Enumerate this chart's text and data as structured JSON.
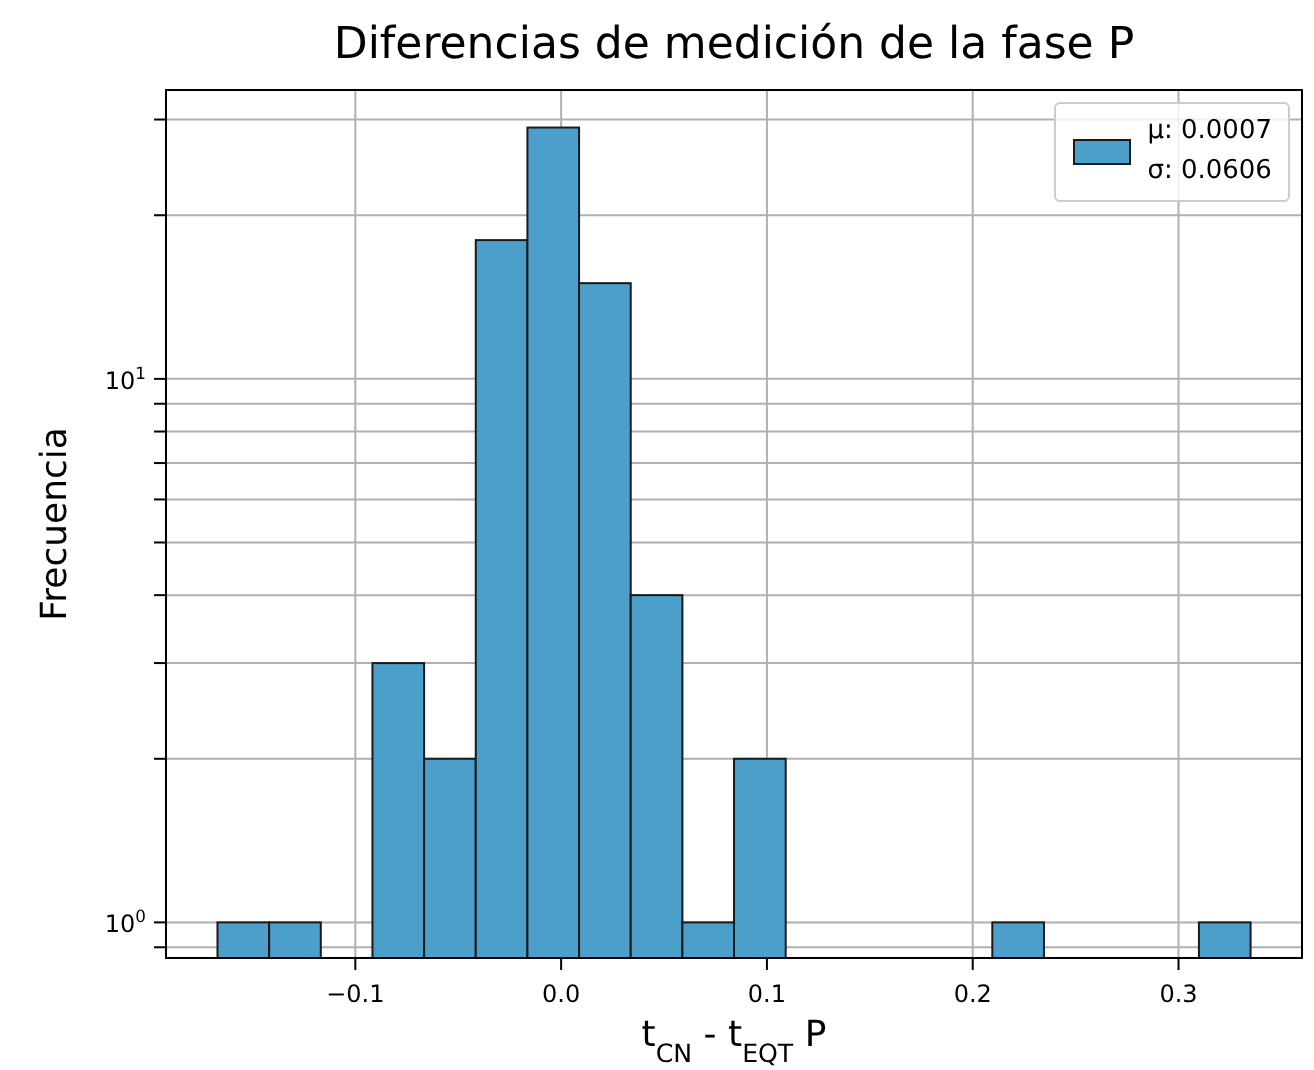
{
  "chart_data": {
    "type": "histogram",
    "title": "Diferencias de medición de la fase P",
    "xlabel": "t$_{CN}$ - t$_{EQT}$ P",
    "ylabel": "Frecuencia",
    "bins": [
      -0.1667,
      -0.1416,
      -0.1165,
      -0.0914,
      -0.0663,
      -0.0412,
      -0.0161,
      0.009,
      0.0341,
      0.0592,
      0.0843,
      0.1094,
      0.1345,
      0.1596,
      0.1847,
      0.2098,
      0.2349,
      0.26,
      0.2851,
      0.3102,
      0.3353
    ],
    "series": [
      {
        "name": "μ: 0.0007\nσ: 0.0606",
        "color": "#4c9fcb",
        "values": [
          1,
          1,
          null,
          3,
          2,
          18,
          29,
          15,
          4,
          1,
          2,
          null,
          null,
          null,
          null,
          1,
          null,
          null,
          null,
          1
        ]
      }
    ],
    "log": "y",
    "xlim": [
      -0.192,
      0.36
    ],
    "ylim": [
      0.86,
      34
    ],
    "xticks": [
      {
        "value": -0.1,
        "label": "−0.1"
      },
      {
        "value": 0,
        "label": "0.0"
      },
      {
        "value": 0.1,
        "label": "0.1"
      },
      {
        "value": 0.2,
        "label": "0.2"
      },
      {
        "value": 0.3,
        "label": "0.3"
      }
    ],
    "yticks": [
      {
        "value": 0.9,
        "label": null
      },
      {
        "value": 1,
        "label": "10$^{0}$"
      },
      {
        "value": 2,
        "label": null
      },
      {
        "value": 3,
        "label": null
      },
      {
        "value": 4,
        "label": null
      },
      {
        "value": 5,
        "label": null
      },
      {
        "value": 6,
        "label": null
      },
      {
        "value": 7,
        "label": null
      },
      {
        "value": 8,
        "label": null
      },
      {
        "value": 9,
        "label": null
      },
      {
        "value": 10,
        "label": "10$^{1}$"
      },
      {
        "value": 20,
        "label": null
      },
      {
        "value": 30,
        "label": null
      }
    ],
    "grid": true,
    "legend": "top right"
  }
}
